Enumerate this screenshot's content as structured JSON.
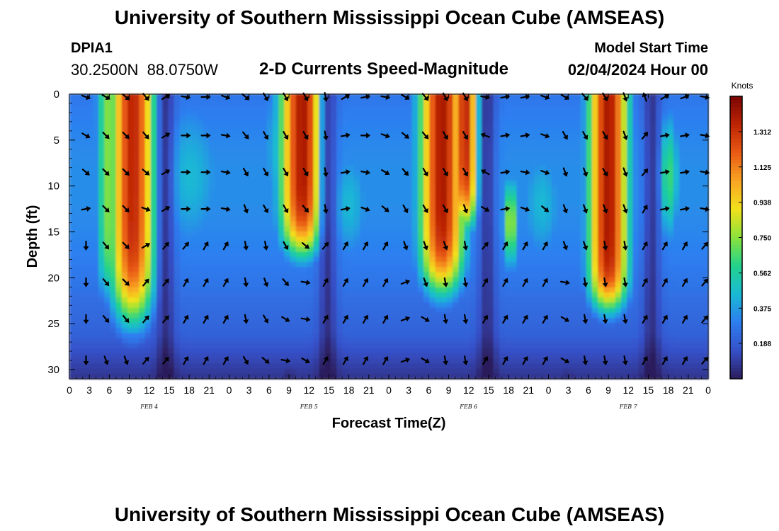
{
  "header": {
    "title": "University of Southern Mississippi Ocean Cube (AMSEAS)",
    "station_id": "DPIA1",
    "station_coords": "30.2500N  88.0750W",
    "plot_title": "2-D Currents Speed-Magnitude",
    "model_start_label": "Model Start Time",
    "model_start_value": "02/04/2024 Hour 00"
  },
  "footer": {
    "title": "University of Southern Mississippi Ocean Cube (AMSEAS)"
  },
  "colors": {
    "stops": [
      "#2c1d5c",
      "#3650c8",
      "#2d7ef0",
      "#1ab9d4",
      "#22d38c",
      "#8ae23c",
      "#f2e11c",
      "#f9a523",
      "#e95a14",
      "#bd2404",
      "#7a0502"
    ],
    "arrow": "#000000",
    "axis": "#000000"
  },
  "chart_data": {
    "type": "heatmap",
    "title": "2-D Currents Speed-Magnitude",
    "xlabel": "Forecast Time(Z)",
    "ylabel": "Depth (ft)",
    "x_range_hours": [
      0,
      96
    ],
    "y_range_ft": [
      0,
      31
    ],
    "x_tick_labels": [
      "0",
      "3",
      "6",
      "9",
      "12",
      "15",
      "18",
      "21",
      "0",
      "3",
      "6",
      "9",
      "12",
      "15",
      "18",
      "21",
      "0",
      "3",
      "6",
      "9",
      "12",
      "15",
      "18",
      "21",
      "0",
      "3",
      "6",
      "9",
      "12",
      "15",
      "18",
      "21",
      "0"
    ],
    "y_ticks": [
      0,
      5,
      10,
      15,
      20,
      25,
      30
    ],
    "y_tick_labels": [
      "0",
      "5",
      "10",
      "15",
      "20",
      "25",
      "30"
    ],
    "day_labels": [
      {
        "label": "FEB 4",
        "hour": 12
      },
      {
        "label": "FEB 5",
        "hour": 36
      },
      {
        "label": "FEB 6",
        "hour": 60
      },
      {
        "label": "FEB 7",
        "hour": 84
      }
    ],
    "colorbar": {
      "unit": "Knots",
      "min": 0,
      "max": 1.5,
      "ticks": [
        0.188,
        0.375,
        0.562,
        0.75,
        0.938,
        1.125,
        1.312
      ],
      "tick_labels": [
        "0.188",
        "0.375",
        "0.562",
        "0.750",
        "0.938",
        "1.125",
        "1.312"
      ]
    },
    "arrow_depths_ft": [
      0,
      4.5,
      8.5,
      12.5,
      16.5,
      20.5,
      24.5,
      29
    ],
    "arrow_hours": [
      2.5,
      5.5,
      8.5,
      11.5,
      14.5,
      17.5,
      20.5,
      23.5,
      26.5,
      29.5,
      32.5,
      35.5,
      38.5,
      41.5,
      44.5,
      47.5,
      50.5,
      53.5,
      56.5,
      59.5,
      62.5,
      65.5,
      68.5,
      71.5,
      74.5,
      77.5,
      80.5,
      83.5,
      86.5,
      89.5,
      92.5,
      95.5
    ],
    "arrow_dirs_deg": [
      [
        110,
        120,
        130,
        80,
        180,
        180,
        180,
        180
      ],
      [
        120,
        135,
        135,
        135,
        140,
        140,
        140,
        160
      ],
      [
        130,
        135,
        135,
        135,
        135,
        135,
        140,
        160
      ],
      [
        140,
        140,
        130,
        110,
        60,
        40,
        40,
        40
      ],
      [
        60,
        60,
        60,
        60,
        40,
        40,
        40,
        40
      ],
      [
        100,
        90,
        90,
        90,
        40,
        30,
        30,
        30
      ],
      [
        90,
        90,
        90,
        90,
        30,
        30,
        30,
        30
      ],
      [
        110,
        100,
        100,
        100,
        30,
        30,
        30,
        30
      ],
      [
        130,
        140,
        150,
        160,
        170,
        170,
        170,
        150
      ],
      [
        150,
        150,
        150,
        150,
        170,
        160,
        150,
        130
      ],
      [
        150,
        150,
        150,
        150,
        150,
        140,
        120,
        100
      ],
      [
        150,
        150,
        150,
        140,
        130,
        100,
        100,
        120
      ],
      [
        170,
        170,
        170,
        170,
        40,
        30,
        30,
        30
      ],
      [
        60,
        80,
        80,
        80,
        30,
        30,
        30,
        30
      ],
      [
        80,
        90,
        100,
        110,
        30,
        30,
        30,
        30
      ],
      [
        100,
        110,
        120,
        130,
        30,
        30,
        30,
        30
      ],
      [
        120,
        130,
        140,
        150,
        160,
        70,
        70,
        70
      ],
      [
        140,
        140,
        150,
        150,
        160,
        160,
        120,
        120
      ],
      [
        150,
        150,
        150,
        150,
        160,
        170,
        170,
        170
      ],
      [
        150,
        150,
        150,
        160,
        170,
        170,
        170,
        170
      ],
      [
        100,
        290,
        300,
        120,
        40,
        30,
        30,
        30
      ],
      [
        80,
        80,
        80,
        80,
        30,
        30,
        30,
        30
      ],
      [
        80,
        80,
        100,
        110,
        30,
        30,
        30,
        30
      ],
      [
        110,
        110,
        110,
        130,
        30,
        30,
        30,
        30
      ],
      [
        120,
        150,
        160,
        160,
        160,
        100,
        120,
        120
      ],
      [
        140,
        150,
        160,
        160,
        160,
        170,
        170,
        170
      ],
      [
        150,
        150,
        150,
        160,
        170,
        170,
        170,
        170
      ],
      [
        160,
        160,
        160,
        160,
        170,
        170,
        170,
        170
      ],
      [
        340,
        40,
        40,
        30,
        30,
        30,
        30,
        30
      ],
      [
        60,
        80,
        80,
        80,
        30,
        30,
        30,
        30
      ],
      [
        70,
        80,
        80,
        80,
        30,
        30,
        30,
        30
      ],
      [
        100,
        100,
        100,
        100,
        40,
        40,
        40,
        40
      ]
    ]
  }
}
